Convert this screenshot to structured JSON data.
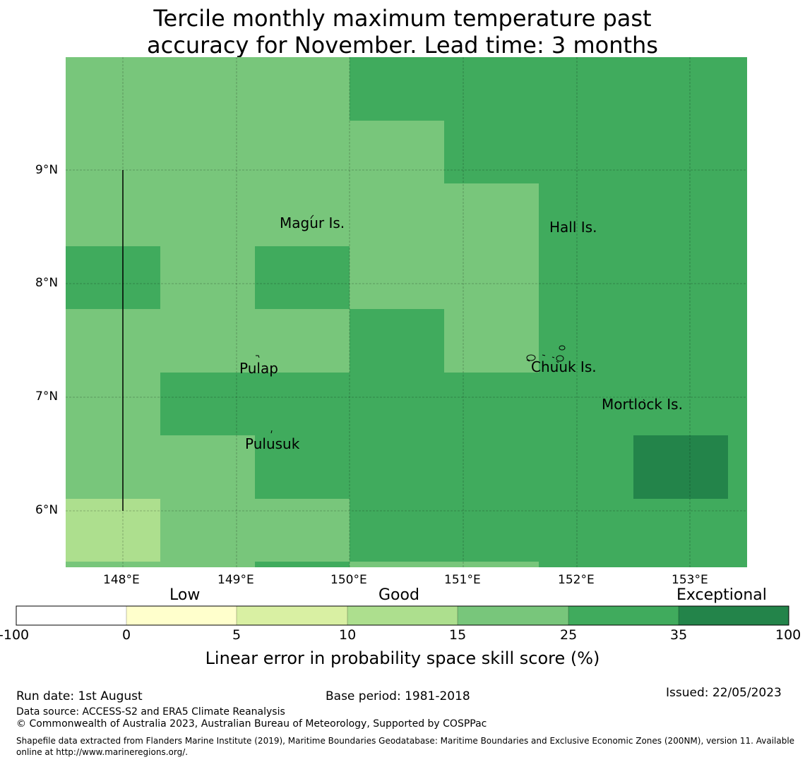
{
  "title": {
    "line1": "Tercile monthly maximum temperature past",
    "line2": "accuracy for November. Lead time: 3 months"
  },
  "map": {
    "lat_ticks": [
      "9°N",
      "8°N",
      "7°N",
      "6°N"
    ],
    "lon_ticks": [
      "148°E",
      "149°E",
      "150°E",
      "151°E",
      "152°E",
      "153°E"
    ],
    "place_labels": [
      "Magur Is.",
      "Hall Is.",
      "Pulap",
      "Chuuk Is.",
      "Mortlock Is.",
      "Pulusuk"
    ],
    "colors": {
      "c10_15": "#addf8e",
      "c15_25": "#78c67b",
      "c25_35": "#40ab5d",
      "c35_100": "#23844a"
    }
  },
  "colorbar": {
    "headings": {
      "low": "Low",
      "good": "Good",
      "exceptional": "Exceptional"
    },
    "ticks": [
      "-100",
      "0",
      "5",
      "10",
      "15",
      "25",
      "35",
      "100"
    ],
    "colors": [
      "#ffffff",
      "#ffffcc",
      "#d9f0a3",
      "#addf8e",
      "#78c67b",
      "#40ab5d",
      "#23844a"
    ],
    "label": "Linear error in probability space skill score (%)"
  },
  "footer": {
    "run_date": "Run date: 1st August",
    "base_period": "Base period: 1981-2018",
    "issued": "Issued: 22/05/2023",
    "data_source": "Data source: ACCESS-S2 and ERA5 Climate Reanalysis",
    "copyright": "© Commonwealth of Australia 2023, Australian Bureau of Meteorology, Supported by COSPPac",
    "shapefile": "Shapefile data extracted from Flanders Marine Institute (2019), Maritime Boundaries Geodatabase: Maritime Boundaries and Exclusive Economic Zones (200NM), version 11. Available online at http://www.marineregions.org/."
  }
}
